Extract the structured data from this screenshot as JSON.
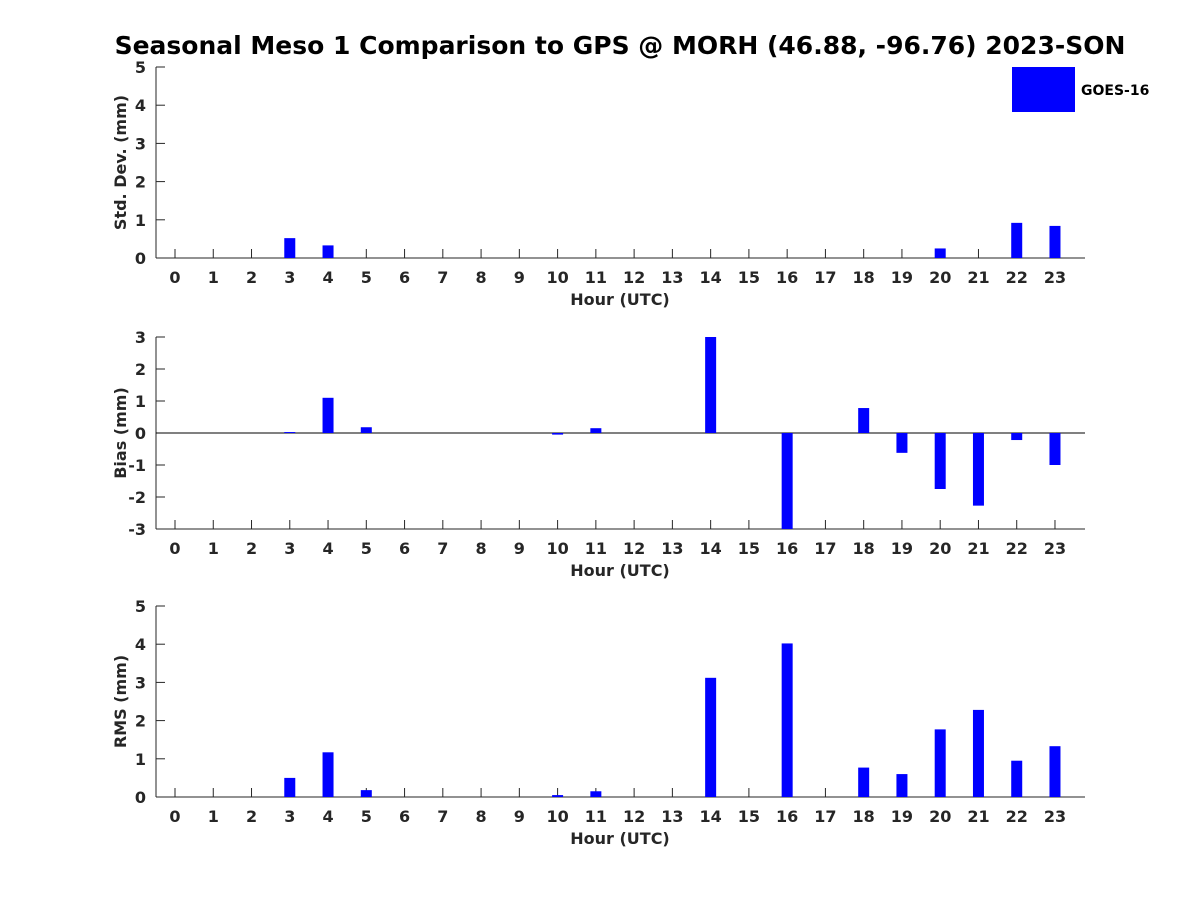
{
  "title": "Seasonal Meso 1 Comparison to GPS @ MORH (46.88, -96.76) 2023-SON",
  "legend": {
    "label": "GOES-16",
    "color": "#0000ff"
  },
  "chart_data": [
    {
      "type": "bar",
      "id": "stddev",
      "ylabel": "Std. Dev. (mm)",
      "xlabel": "Hour (UTC)",
      "ylim": [
        0,
        5
      ],
      "yticks": [
        0,
        1,
        2,
        3,
        4,
        5
      ],
      "categories": [
        "0",
        "1",
        "2",
        "3",
        "4",
        "5",
        "6",
        "7",
        "8",
        "9",
        "10",
        "11",
        "12",
        "13",
        "14",
        "15",
        "16",
        "17",
        "18",
        "19",
        "20",
        "21",
        "22",
        "23"
      ],
      "series": [
        {
          "name": "GOES-16",
          "values": [
            0,
            0,
            0,
            0.52,
            0.33,
            0,
            0,
            0,
            0,
            0,
            0,
            0,
            0,
            0,
            0,
            0,
            0,
            0,
            0,
            0,
            0.25,
            0,
            0.92,
            0.84
          ]
        }
      ]
    },
    {
      "type": "bar",
      "id": "bias",
      "ylabel": "Bias (mm)",
      "xlabel": "Hour (UTC)",
      "ylim": [
        -3,
        3
      ],
      "yticks": [
        -3,
        -2,
        -1,
        0,
        1,
        2,
        3
      ],
      "zero_line": true,
      "categories": [
        "0",
        "1",
        "2",
        "3",
        "4",
        "5",
        "6",
        "7",
        "8",
        "9",
        "10",
        "11",
        "12",
        "13",
        "14",
        "15",
        "16",
        "17",
        "18",
        "19",
        "20",
        "21",
        "22",
        "23"
      ],
      "series": [
        {
          "name": "GOES-16",
          "values": [
            0,
            0,
            0,
            0.03,
            1.1,
            0.18,
            0,
            0,
            0,
            0,
            -0.05,
            0.15,
            0,
            0,
            3.0,
            0,
            -3.0,
            0,
            0.78,
            -0.62,
            -1.75,
            -2.27,
            -0.22,
            -1.0
          ]
        }
      ]
    },
    {
      "type": "bar",
      "id": "rms",
      "ylabel": "RMS (mm)",
      "xlabel": "Hour (UTC)",
      "ylim": [
        0,
        5
      ],
      "yticks": [
        0,
        1,
        2,
        3,
        4,
        5
      ],
      "categories": [
        "0",
        "1",
        "2",
        "3",
        "4",
        "5",
        "6",
        "7",
        "8",
        "9",
        "10",
        "11",
        "12",
        "13",
        "14",
        "15",
        "16",
        "17",
        "18",
        "19",
        "20",
        "21",
        "22",
        "23"
      ],
      "series": [
        {
          "name": "GOES-16",
          "values": [
            0,
            0,
            0,
            0.5,
            1.17,
            0.18,
            0,
            0,
            0,
            0,
            0.05,
            0.15,
            0,
            0,
            3.12,
            0,
            4.02,
            0,
            0.77,
            0.6,
            1.77,
            2.28,
            0.95,
            1.33
          ]
        }
      ]
    }
  ]
}
